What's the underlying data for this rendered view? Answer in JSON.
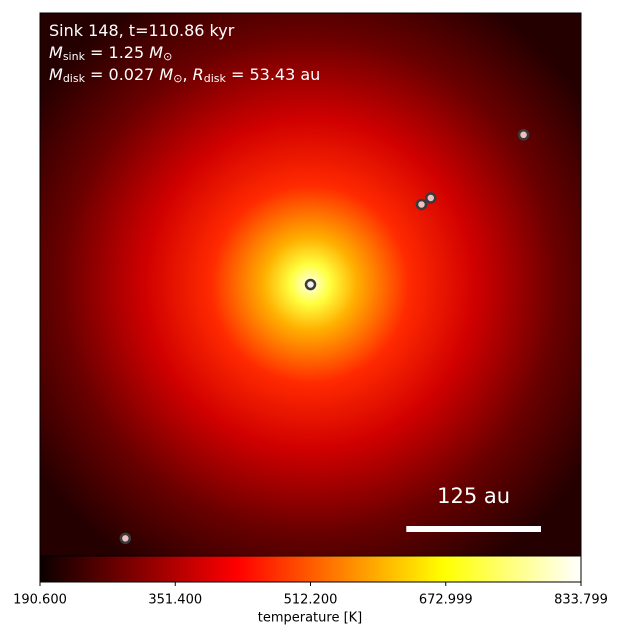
{
  "chart_data": {
    "type": "image",
    "annotations": [
      [
        "Sink 148, t=110.86 kyr"
      ],
      [
        "M",
        "sink",
        " = 1.25 ",
        "M",
        "⊙"
      ],
      [
        "M",
        "disk",
        " = 0.027 ",
        "M",
        "⊙",
        ", ",
        "R",
        "disk",
        " = 53.43 au"
      ]
    ],
    "sinks": {
      "x": [
        0,
        103,
        111.6,
        197.7,
        -171.8
      ],
      "y": [
        0,
        74,
        80,
        138.4,
        -234.7
      ]
    },
    "xlim": [
      -251,
      251
    ],
    "ylim": [
      -251,
      251
    ],
    "scale_bar": {
      "length": 125,
      "label": "125 au"
    },
    "colorbar": {
      "label": "temperature [K]",
      "clim": [
        190.6,
        833.799
      ],
      "ticks": [
        {
          "value": 190.6,
          "label": "190.600"
        },
        {
          "value": 351.4,
          "label": "351.400"
        },
        {
          "value": 512.2,
          "label": "512.200"
        },
        {
          "value": 672.999,
          "label": "672.999"
        },
        {
          "value": 833.799,
          "label": "833.799"
        }
      ]
    }
  }
}
